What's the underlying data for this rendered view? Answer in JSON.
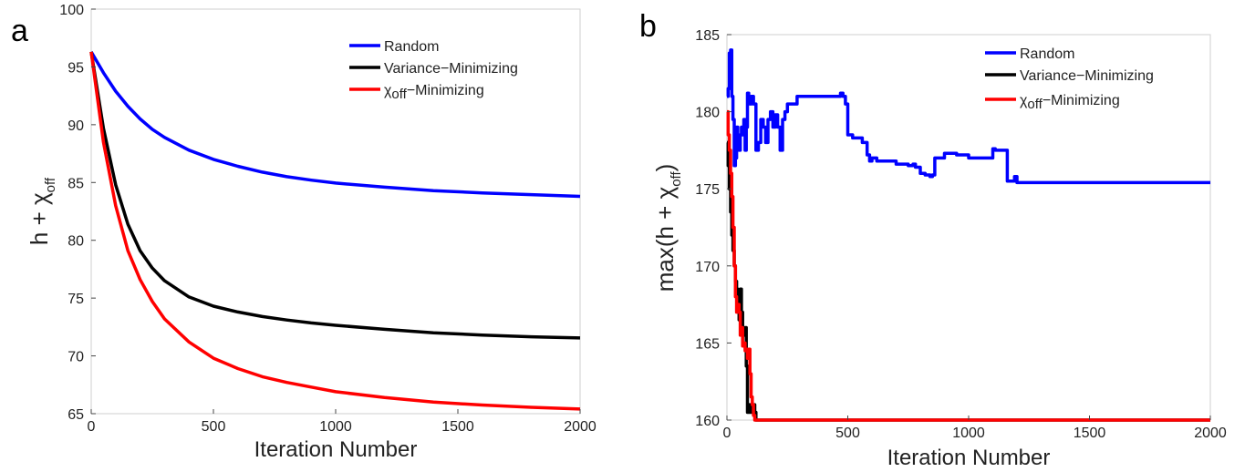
{
  "panels": [
    {
      "letter": "a"
    },
    {
      "letter": "b"
    }
  ],
  "chart_data": [
    {
      "type": "line",
      "xlabel": "Iteration Number",
      "ylabel": "h + χ",
      "ylabel_sub": "off",
      "xlim": [
        0,
        2000
      ],
      "ylim": [
        65,
        100
      ],
      "xticks": [
        0,
        500,
        1000,
        1500,
        2000
      ],
      "yticks": [
        65,
        70,
        75,
        80,
        85,
        90,
        95,
        100
      ],
      "legend_position": "top-right",
      "grid": false,
      "series": [
        {
          "name": "Random",
          "color": "#0000ff",
          "x": [
            0,
            50,
            100,
            150,
            200,
            250,
            300,
            400,
            500,
            600,
            700,
            800,
            900,
            1000,
            1200,
            1400,
            1600,
            1800,
            2000
          ],
          "y": [
            96.3,
            94.5,
            92.9,
            91.6,
            90.5,
            89.6,
            88.9,
            87.8,
            87.0,
            86.4,
            85.9,
            85.5,
            85.2,
            84.95,
            84.6,
            84.3,
            84.1,
            83.95,
            83.8
          ]
        },
        {
          "name": "Variance−Minimizing",
          "color": "#000000",
          "x": [
            0,
            50,
            100,
            150,
            200,
            250,
            300,
            400,
            500,
            600,
            700,
            800,
            900,
            1000,
            1200,
            1400,
            1600,
            1800,
            2000
          ],
          "y": [
            96.3,
            89.7,
            84.8,
            81.4,
            79.1,
            77.6,
            76.5,
            75.1,
            74.3,
            73.8,
            73.4,
            73.1,
            72.85,
            72.65,
            72.3,
            72.0,
            71.8,
            71.65,
            71.55
          ]
        },
        {
          "name": "χoff−Minimizing",
          "color": "#ff0000",
          "x": [
            0,
            50,
            100,
            150,
            200,
            250,
            300,
            400,
            500,
            600,
            700,
            800,
            900,
            1000,
            1200,
            1400,
            1600,
            1800,
            2000
          ],
          "y": [
            96.3,
            88.5,
            83.0,
            79.1,
            76.6,
            74.7,
            73.2,
            71.2,
            69.8,
            68.9,
            68.2,
            67.7,
            67.3,
            66.9,
            66.4,
            66.0,
            65.75,
            65.55,
            65.4
          ]
        }
      ]
    },
    {
      "type": "line",
      "xlabel": "Iteration Number",
      "ylabel": "max(h +  χ",
      "ylabel_sub": "off",
      "ylabel_close": ")",
      "xlim": [
        0,
        2000
      ],
      "ylim": [
        160,
        185
      ],
      "xticks": [
        0,
        500,
        1000,
        1500,
        2000
      ],
      "yticks": [
        160,
        165,
        170,
        175,
        180,
        185
      ],
      "legend_position": "top-right",
      "grid": false,
      "series": [
        {
          "name": "Random",
          "color": "#0000ff",
          "x": [
            0,
            5,
            10,
            15,
            20,
            25,
            30,
            35,
            40,
            45,
            50,
            55,
            60,
            65,
            70,
            75,
            80,
            85,
            90,
            95,
            100,
            110,
            120,
            130,
            140,
            150,
            160,
            170,
            180,
            190,
            200,
            210,
            220,
            230,
            240,
            250,
            270,
            290,
            300,
            320,
            340,
            360,
            380,
            400,
            420,
            440,
            460,
            470,
            480,
            490,
            500,
            520,
            540,
            560,
            580,
            590,
            600,
            620,
            650,
            700,
            750,
            770,
            780,
            800,
            820,
            840,
            850,
            860,
            900,
            950,
            1000,
            1050,
            1100,
            1110,
            1150,
            1160,
            1170,
            1180,
            1190,
            1200,
            1300,
            1500,
            1700,
            2000
          ],
          "y": [
            181.0,
            181.5,
            183.8,
            184.0,
            181.0,
            179.5,
            176.5,
            177.0,
            179.0,
            178.0,
            177.5,
            178.5,
            179.0,
            178.5,
            179.5,
            177.5,
            179.0,
            181.2,
            181.0,
            180.5,
            181.0,
            180.5,
            177.5,
            178.0,
            179.5,
            179.0,
            178.0,
            179.5,
            180.0,
            179.0,
            179.8,
            179.0,
            177.5,
            179.5,
            180.0,
            180.5,
            180.5,
            181.0,
            181.0,
            181.0,
            181.0,
            181.0,
            181.0,
            181.0,
            181.0,
            181.0,
            181.0,
            181.2,
            181.0,
            180.5,
            178.5,
            178.3,
            178.3,
            178.0,
            177.2,
            176.8,
            177.0,
            176.8,
            176.8,
            176.6,
            176.5,
            176.6,
            176.4,
            176.0,
            175.9,
            175.8,
            175.9,
            177.0,
            177.3,
            177.2,
            177.0,
            177.0,
            177.6,
            177.5,
            177.5,
            175.5,
            175.5,
            175.5,
            175.8,
            175.4,
            175.4,
            175.4,
            175.4,
            175.4
          ]
        },
        {
          "name": "Variance−Minimizing",
          "color": "#000000",
          "x": [
            0,
            5,
            10,
            15,
            20,
            25,
            30,
            35,
            40,
            45,
            50,
            55,
            60,
            65,
            70,
            75,
            80,
            85,
            90,
            95,
            100,
            105,
            110,
            115,
            120,
            130,
            500,
            1000,
            1500,
            2000
          ],
          "y": [
            178.0,
            176.5,
            175.0,
            173.5,
            172.0,
            171.0,
            170.0,
            169.0,
            168.5,
            167.5,
            166.5,
            168.5,
            167.0,
            166.0,
            165.5,
            166.0,
            163.5,
            160.5,
            161.0,
            160.5,
            160.5,
            161.0,
            161.0,
            160.5,
            160.0,
            160.0,
            160.0,
            160.0,
            160.0,
            160.0
          ]
        },
        {
          "name": "χoff−Minimizing",
          "color": "#ff0000",
          "x": [
            0,
            5,
            10,
            15,
            20,
            25,
            30,
            35,
            40,
            45,
            50,
            55,
            60,
            65,
            70,
            75,
            80,
            85,
            90,
            95,
            100,
            105,
            110,
            115,
            120,
            130,
            500,
            1000,
            1500,
            2000
          ],
          "y": [
            180.0,
            178.5,
            177.5,
            176.0,
            174.5,
            172.5,
            170.0,
            168.0,
            167.0,
            167.5,
            167.0,
            165.5,
            166.0,
            164.8,
            165.0,
            164.5,
            164.6,
            164.0,
            164.6,
            163.0,
            161.5,
            161.0,
            160.3,
            160.0,
            160.0,
            160.0,
            160.0,
            160.0,
            160.0,
            160.0
          ]
        }
      ]
    }
  ]
}
